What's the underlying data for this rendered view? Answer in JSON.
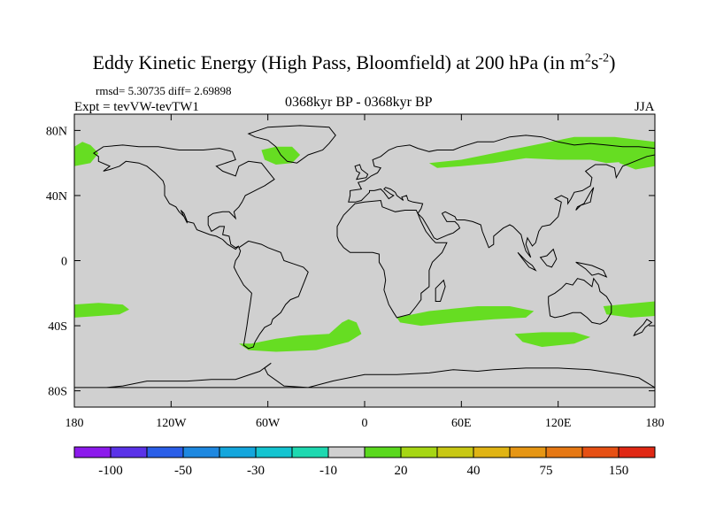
{
  "title": "Eddy Kinetic Energy (High Pass, Bloomfield) at 200 hPa (in m",
  "title_unit_sup1": "2",
  "title_unit_mid": "s",
  "title_unit_sup2": "-2",
  "title_close": ")",
  "stats": "rmsd= 5.30735 diff= 2.69898",
  "experiment": "Expt = tevVW-tevTW1",
  "period": "0368kyr BP - 0368kyr BP",
  "season": "JJA",
  "colors": {
    "land_mask": "#d0d0d0",
    "positive_anomaly": "#66dd22",
    "coastline": "#000000"
  },
  "chart_data": {
    "type": "heatmap",
    "projection": "cylindrical equidistant",
    "xlim": [
      -180,
      180
    ],
    "ylim": [
      -90,
      90
    ],
    "x_ticks": [
      -180,
      -120,
      -60,
      0,
      60,
      120,
      180
    ],
    "x_tick_labels": [
      "180",
      "120W",
      "60W",
      "0",
      "60E",
      "120E",
      "180"
    ],
    "y_ticks": [
      80,
      40,
      0,
      -40,
      -80
    ],
    "y_tick_labels": [
      "80N",
      "40N",
      "0",
      "40S",
      "80S"
    ],
    "colorbar": {
      "colors": [
        "#8c1aec",
        "#5a32e8",
        "#2a5ee8",
        "#1e88e0",
        "#14a6dc",
        "#14c4d0",
        "#1ed8b0",
        "#d0d0d0",
        "#5ad81e",
        "#a6d614",
        "#c8c814",
        "#e0b414",
        "#e69614",
        "#e67814",
        "#e65014",
        "#e02814"
      ],
      "tick_labels": [
        "-100",
        "-50",
        "-30",
        "-10",
        "20",
        "40",
        "75",
        "150"
      ],
      "tick_label_after_box": [
        1,
        3,
        5,
        7,
        9,
        11,
        13,
        15
      ]
    },
    "regions": [
      {
        "name": "north-pacific-west-edge",
        "value": 20,
        "polygon": [
          [
            -180,
            70
          ],
          [
            -175,
            73
          ],
          [
            -170,
            71
          ],
          [
            -165,
            66
          ],
          [
            -170,
            60
          ],
          [
            -180,
            58
          ]
        ]
      },
      {
        "name": "greenland-north-atlantic",
        "value": 20,
        "polygon": [
          [
            -64,
            68
          ],
          [
            -55,
            70
          ],
          [
            -45,
            70
          ],
          [
            -40,
            65
          ],
          [
            -45,
            60
          ],
          [
            -55,
            59
          ],
          [
            -62,
            62
          ]
        ]
      },
      {
        "name": "siberia-north-asia",
        "value": 20,
        "polygon": [
          [
            40,
            60
          ],
          [
            60,
            62
          ],
          [
            85,
            67
          ],
          [
            110,
            72
          ],
          [
            130,
            76
          ],
          [
            155,
            76
          ],
          [
            180,
            73
          ],
          [
            180,
            66
          ],
          [
            165,
            61
          ],
          [
            150,
            60
          ],
          [
            140,
            62
          ],
          [
            120,
            62
          ],
          [
            100,
            63
          ],
          [
            80,
            60
          ],
          [
            60,
            58
          ],
          [
            45,
            57
          ]
        ]
      },
      {
        "name": "north-pacific-east-edge",
        "value": 20,
        "polygon": [
          [
            155,
            70
          ],
          [
            170,
            73
          ],
          [
            180,
            73
          ],
          [
            180,
            58
          ],
          [
            168,
            56
          ],
          [
            158,
            60
          ]
        ]
      },
      {
        "name": "south-pacific-west",
        "value": 20,
        "polygon": [
          [
            -180,
            -27
          ],
          [
            -165,
            -26
          ],
          [
            -150,
            -27
          ],
          [
            -146,
            -30
          ],
          [
            -152,
            -33
          ],
          [
            -165,
            -34
          ],
          [
            -180,
            -35
          ]
        ]
      },
      {
        "name": "south-atlantic",
        "value": 20,
        "polygon": [
          [
            -78,
            -51
          ],
          [
            -70,
            -51
          ],
          [
            -55,
            -48
          ],
          [
            -40,
            -46
          ],
          [
            -22,
            -45
          ],
          [
            -14,
            -38
          ],
          [
            -10,
            -36
          ],
          [
            -5,
            -38
          ],
          [
            -2,
            -45
          ],
          [
            -10,
            -50
          ],
          [
            -30,
            -55
          ],
          [
            -55,
            -56
          ],
          [
            -72,
            -55
          ]
        ]
      },
      {
        "name": "south-indian-ocean",
        "value": 20,
        "polygon": [
          [
            20,
            -35
          ],
          [
            40,
            -31
          ],
          [
            70,
            -28
          ],
          [
            90,
            -28
          ],
          [
            105,
            -31
          ],
          [
            100,
            -35
          ],
          [
            80,
            -36
          ],
          [
            55,
            -38
          ],
          [
            35,
            -40
          ],
          [
            22,
            -38
          ]
        ]
      },
      {
        "name": "southern-indian-ocean-2",
        "value": 20,
        "polygon": [
          [
            93,
            -45
          ],
          [
            110,
            -44
          ],
          [
            130,
            -44
          ],
          [
            140,
            -47
          ],
          [
            130,
            -51
          ],
          [
            110,
            -53
          ],
          [
            98,
            -50
          ]
        ]
      },
      {
        "name": "south-pacific-east",
        "value": 20,
        "polygon": [
          [
            148,
            -28
          ],
          [
            180,
            -25
          ],
          [
            180,
            -34
          ],
          [
            165,
            -35
          ],
          [
            150,
            -33
          ]
        ]
      }
    ]
  }
}
